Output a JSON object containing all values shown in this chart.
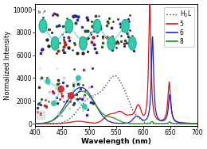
{
  "title": "",
  "xlabel": "Wavelength (nm)",
  "ylabel": "Normalized Intensity",
  "xlim": [
    400,
    700
  ],
  "ylim": [
    -200,
    10500
  ],
  "yticks": [
    0,
    2000,
    4000,
    6000,
    8000,
    10000
  ],
  "xticks": [
    400,
    450,
    500,
    550,
    600,
    650,
    700
  ],
  "background_color": "#ffffff",
  "colors": {
    "H2L": "#444444",
    "5": "#dd1111",
    "6": "#2222cc",
    "8": "#119911"
  },
  "spectral": {
    "H2L": {
      "peaks": [
        {
          "mu": 490,
          "sigma": 18,
          "amp": 1200
        },
        {
          "mu": 510,
          "sigma": 16,
          "amp": 1400
        },
        {
          "mu": 535,
          "sigma": 14,
          "amp": 2200
        },
        {
          "mu": 552,
          "sigma": 12,
          "amp": 2700
        },
        {
          "mu": 570,
          "sigma": 10,
          "amp": 1400
        },
        {
          "mu": 590,
          "sigma": 8,
          "amp": 400
        }
      ]
    },
    "5": {
      "broad_peaks": [
        {
          "mu": 480,
          "sigma": 15,
          "amp": 200
        },
        {
          "mu": 537,
          "sigma": 10,
          "amp": 750
        },
        {
          "mu": 558,
          "sigma": 9,
          "amp": 950
        },
        {
          "mu": 578,
          "sigma": 7,
          "amp": 600
        },
        {
          "mu": 591,
          "sigma": 5,
          "amp": 1400
        }
      ],
      "sharp_peaks": [
        {
          "mu": 612,
          "gamma": 2.5,
          "amp": 10500
        },
        {
          "mu": 648,
          "gamma": 3.0,
          "amp": 3600
        }
      ]
    },
    "6": {
      "broad_peaks": [
        {
          "mu": 472,
          "sigma": 20,
          "amp": 2200
        },
        {
          "mu": 498,
          "sigma": 18,
          "amp": 1800
        },
        {
          "mu": 588,
          "sigma": 7,
          "amp": 600
        }
      ],
      "sharp_peaks": [
        {
          "mu": 617,
          "gamma": 2.5,
          "amp": 7600
        },
        {
          "mu": 649,
          "gamma": 3.0,
          "amp": 2500
        }
      ]
    },
    "8": {
      "broad_peaks": [
        {
          "mu": 475,
          "sigma": 22,
          "amp": 1800
        },
        {
          "mu": 498,
          "sigma": 20,
          "amp": 1500
        },
        {
          "mu": 543,
          "sigma": 12,
          "amp": 400
        }
      ],
      "sharp_peaks": [
        {
          "mu": 616,
          "gamma": 2.0,
          "amp": 200
        },
        {
          "mu": 649,
          "gamma": 2.5,
          "amp": 160
        }
      ]
    }
  },
  "legend": {
    "loc": "upper right",
    "fontsize": 5.5,
    "frameon": true,
    "handlelength": 1.8,
    "labelspacing": 0.25,
    "borderpad": 0.35
  }
}
